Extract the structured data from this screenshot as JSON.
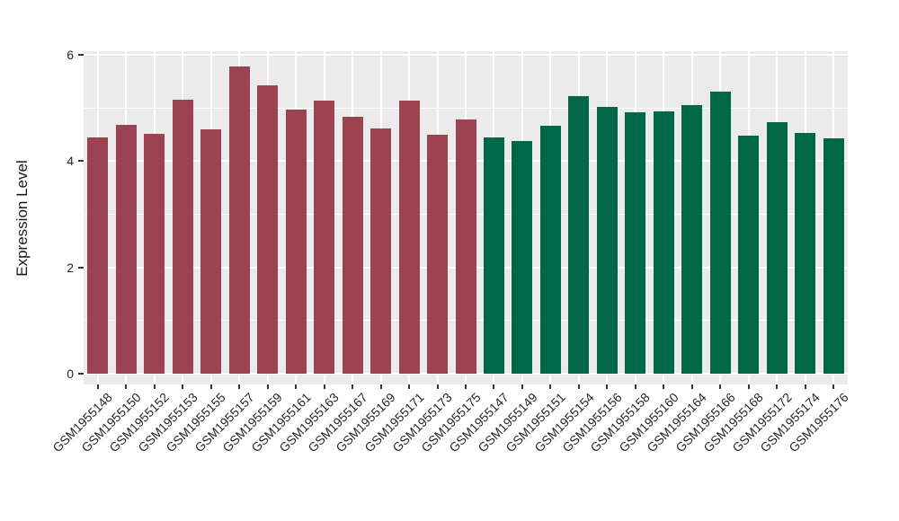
{
  "figure": {
    "background": "#FFFFFF",
    "panel_background": "#EBEBEB",
    "grid_color": "#FFFFFF",
    "tick_color": "#333333",
    "axis_text_color": "#262626"
  },
  "chart_data": {
    "type": "bar",
    "title": "",
    "xlabel": "",
    "ylabel": "Expression Level",
    "ylim": [
      0,
      6.07
    ],
    "yticks_major": [
      0,
      2,
      4,
      6
    ],
    "yticks_minor": [
      1,
      3,
      5
    ],
    "grid": true,
    "legend": false,
    "x_label_rotation_deg": -45,
    "bar_groups": [
      {
        "name": "group-1",
        "color": "#9B4351"
      },
      {
        "name": "group-2",
        "color": "#006847"
      }
    ],
    "bars": [
      {
        "label": "GSM1955148",
        "value": 4.45,
        "group": 0
      },
      {
        "label": "GSM1955150",
        "value": 4.68,
        "group": 0
      },
      {
        "label": "GSM1955152",
        "value": 4.51,
        "group": 0
      },
      {
        "label": "GSM1955153",
        "value": 5.15,
        "group": 0
      },
      {
        "label": "GSM1955155",
        "value": 4.6,
        "group": 0
      },
      {
        "label": "GSM1955157",
        "value": 5.78,
        "group": 0
      },
      {
        "label": "GSM1955159",
        "value": 5.42,
        "group": 0
      },
      {
        "label": "GSM1955161",
        "value": 4.97,
        "group": 0
      },
      {
        "label": "GSM1955163",
        "value": 5.14,
        "group": 0
      },
      {
        "label": "GSM1955167",
        "value": 4.83,
        "group": 0
      },
      {
        "label": "GSM1955169",
        "value": 4.61,
        "group": 0
      },
      {
        "label": "GSM1955171",
        "value": 5.14,
        "group": 0
      },
      {
        "label": "GSM1955173",
        "value": 4.5,
        "group": 0
      },
      {
        "label": "GSM1955175",
        "value": 4.78,
        "group": 0
      },
      {
        "label": "GSM1955147",
        "value": 4.45,
        "group": 1
      },
      {
        "label": "GSM1955149",
        "value": 4.38,
        "group": 1
      },
      {
        "label": "GSM1955151",
        "value": 4.66,
        "group": 1
      },
      {
        "label": "GSM1955154",
        "value": 5.22,
        "group": 1
      },
      {
        "label": "GSM1955156",
        "value": 5.02,
        "group": 1
      },
      {
        "label": "GSM1955158",
        "value": 4.92,
        "group": 1
      },
      {
        "label": "GSM1955160",
        "value": 4.93,
        "group": 1
      },
      {
        "label": "GSM1955164",
        "value": 5.05,
        "group": 1
      },
      {
        "label": "GSM1955166",
        "value": 5.31,
        "group": 1
      },
      {
        "label": "GSM1955168",
        "value": 4.48,
        "group": 1
      },
      {
        "label": "GSM1955172",
        "value": 4.73,
        "group": 1
      },
      {
        "label": "GSM1955174",
        "value": 4.53,
        "group": 1
      },
      {
        "label": "GSM1955176",
        "value": 4.43,
        "group": 1
      }
    ]
  }
}
